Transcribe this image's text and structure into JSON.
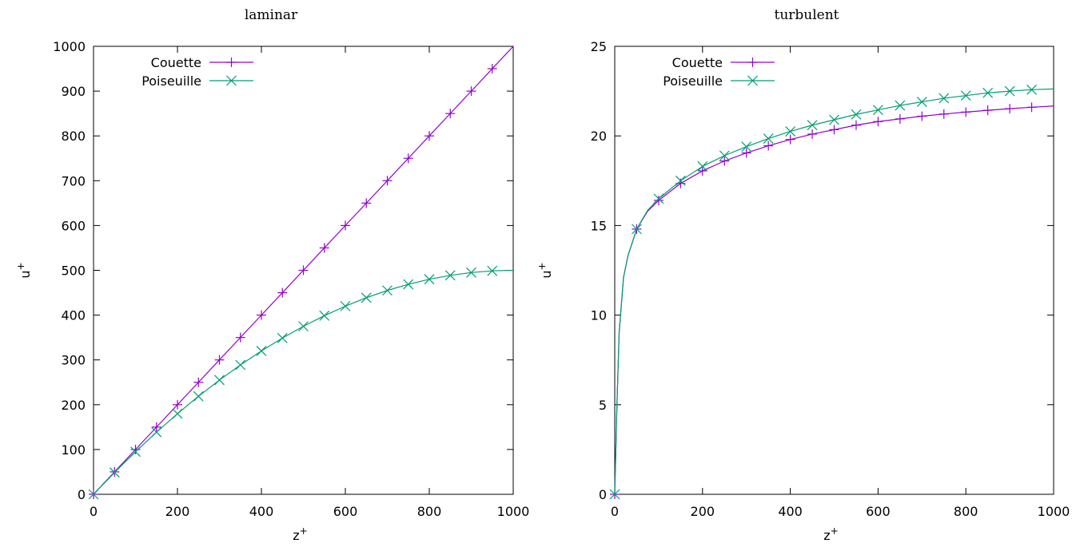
{
  "chart_data": [
    {
      "type": "line",
      "title": "laminar",
      "xlabel": "z",
      "xlabel_sup": "+",
      "ylabel": "u",
      "ylabel_sup": "+",
      "xlim": [
        0,
        1000
      ],
      "ylim": [
        0,
        1000
      ],
      "xticks": [
        0,
        200,
        400,
        600,
        800,
        1000
      ],
      "yticks": [
        0,
        100,
        200,
        300,
        400,
        500,
        600,
        700,
        800,
        900,
        1000
      ],
      "grid": false,
      "legend_position": "top-left",
      "series": [
        {
          "name": "Couette",
          "marker": "plus",
          "color": "#9400d3",
          "x": [
            0,
            50,
            100,
            150,
            200,
            250,
            300,
            350,
            400,
            450,
            500,
            550,
            600,
            650,
            700,
            750,
            800,
            850,
            900,
            950,
            1000
          ],
          "y": [
            0,
            50,
            100,
            150,
            200,
            250,
            300,
            350,
            400,
            450,
            500,
            550,
            600,
            650,
            700,
            750,
            800,
            850,
            900,
            950,
            1000
          ],
          "marker_x": [
            0,
            50,
            100,
            150,
            200,
            250,
            300,
            350,
            400,
            450,
            500,
            550,
            600,
            650,
            700,
            750,
            800,
            850,
            900,
            950
          ]
        },
        {
          "name": "Poiseuille",
          "marker": "cross",
          "color": "#009e73",
          "x": [
            0,
            50,
            100,
            150,
            200,
            250,
            300,
            350,
            400,
            450,
            500,
            550,
            600,
            650,
            700,
            750,
            800,
            850,
            900,
            950,
            1000
          ],
          "y": [
            0,
            48.75,
            95,
            138.75,
            180,
            218.75,
            255,
            288.75,
            320,
            348.75,
            375,
            398.75,
            420,
            438.75,
            455,
            468.75,
            480,
            488.75,
            495,
            498.75,
            500
          ],
          "marker_x": [
            0,
            50,
            100,
            150,
            200,
            250,
            300,
            350,
            400,
            450,
            500,
            550,
            600,
            650,
            700,
            750,
            800,
            850,
            900,
            950
          ]
        }
      ]
    },
    {
      "type": "line",
      "title": "turbulent",
      "xlabel": "z",
      "xlabel_sup": "+",
      "ylabel": "u",
      "ylabel_sup": "+",
      "xlim": [
        0,
        1000
      ],
      "ylim": [
        0,
        25
      ],
      "xticks": [
        0,
        200,
        400,
        600,
        800,
        1000
      ],
      "yticks": [
        0,
        5,
        10,
        15,
        20,
        25
      ],
      "grid": false,
      "legend_position": "top-left",
      "series": [
        {
          "name": "Couette",
          "marker": "plus",
          "color": "#9400d3",
          "x": [
            0,
            2,
            5,
            10,
            20,
            30,
            50,
            75,
            100,
            150,
            200,
            250,
            300,
            350,
            400,
            450,
            500,
            550,
            600,
            650,
            700,
            750,
            800,
            850,
            900,
            950,
            1000
          ],
          "y": [
            0,
            2,
            5,
            9,
            12.1,
            13.3,
            14.8,
            15.8,
            16.4,
            17.35,
            18.05,
            18.6,
            19.05,
            19.45,
            19.8,
            20.1,
            20.35,
            20.6,
            20.8,
            20.95,
            21.1,
            21.22,
            21.33,
            21.43,
            21.52,
            21.6,
            21.67
          ],
          "marker_x": [
            0,
            50,
            100,
            150,
            200,
            250,
            300,
            350,
            400,
            450,
            500,
            550,
            600,
            650,
            700,
            750,
            800,
            850,
            900,
            950
          ]
        },
        {
          "name": "Poiseuille",
          "marker": "cross",
          "color": "#009e73",
          "x": [
            0,
            2,
            5,
            10,
            20,
            30,
            50,
            75,
            100,
            150,
            200,
            250,
            300,
            350,
            400,
            450,
            500,
            550,
            600,
            650,
            700,
            750,
            800,
            850,
            900,
            950,
            1000
          ],
          "y": [
            0,
            2,
            5,
            9,
            12.1,
            13.3,
            14.8,
            15.85,
            16.5,
            17.5,
            18.3,
            18.9,
            19.4,
            19.85,
            20.25,
            20.6,
            20.9,
            21.2,
            21.45,
            21.7,
            21.9,
            22.1,
            22.25,
            22.4,
            22.5,
            22.58,
            22.62
          ],
          "marker_x": [
            0,
            50,
            100,
            150,
            200,
            250,
            300,
            350,
            400,
            450,
            500,
            550,
            600,
            650,
            700,
            750,
            800,
            850,
            900,
            950
          ]
        }
      ]
    }
  ]
}
